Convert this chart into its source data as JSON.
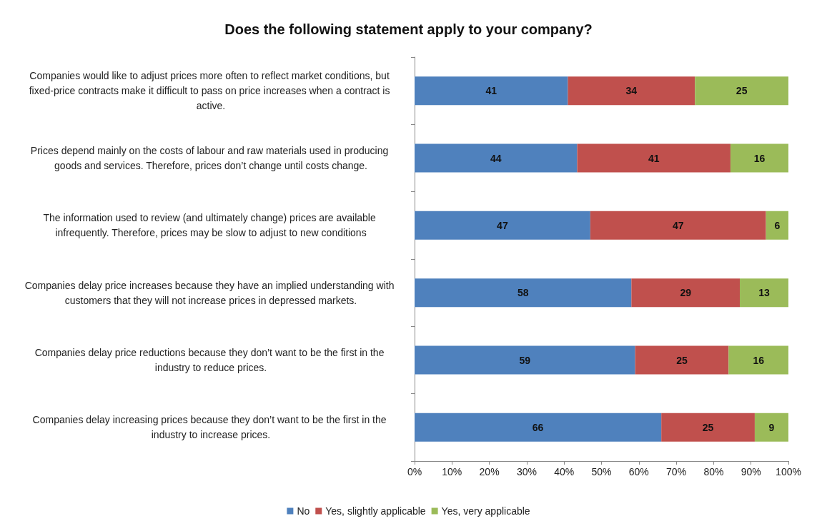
{
  "chart_data": {
    "type": "bar",
    "orientation": "horizontal",
    "stacked": true,
    "title": "Does the following statement apply to your company?",
    "categories": [
      "Companies would like to adjust prices more often to reflect market conditions, but fixed-price contracts make it difficult to pass on price increases when a contract is active.",
      "Prices depend mainly on the costs of labour and raw materials used in producing goods and services. Therefore, prices don’t change until costs change.",
      "The information used to review (and ultimately change) prices are available infrequently. Therefore, prices may be slow to adjust to new conditions",
      "Companies delay price increases because they have an implied understanding with customers that they will not increase prices in depressed markets.",
      "Companies delay price reductions because they don’t want to be the first in the industry to reduce prices.",
      "Companies delay increasing prices because they don’t want to be the first in the industry to increase prices."
    ],
    "series": [
      {
        "name": "No",
        "color": "#4f81bd",
        "values": [
          41,
          43.5,
          47,
          58,
          59,
          66
        ],
        "value_labels": [
          "41",
          "44",
          "47",
          "58",
          "59",
          "66"
        ]
      },
      {
        "name": "Yes, slightly applicable",
        "color": "#c0504d",
        "values": [
          34,
          41,
          47,
          29,
          25,
          25
        ],
        "value_labels": [
          "34",
          "41",
          "47",
          "29",
          "25",
          "25"
        ]
      },
      {
        "name": "Yes, very applicable",
        "color": "#9bbb59",
        "values": [
          25,
          15.5,
          6,
          13,
          16,
          9
        ],
        "value_labels": [
          "25",
          "16",
          "6",
          "13",
          "16",
          "9"
        ]
      }
    ],
    "xlim": [
      0,
      100
    ],
    "xticks": [
      {
        "value": 0,
        "label": "0%"
      },
      {
        "value": 10,
        "label": "10%"
      },
      {
        "value": 20,
        "label": "20%"
      },
      {
        "value": 30,
        "label": "30%"
      },
      {
        "value": 40,
        "label": "40%"
      },
      {
        "value": 50,
        "label": "50%"
      },
      {
        "value": 60,
        "label": "60%"
      },
      {
        "value": 70,
        "label": "70%"
      },
      {
        "value": 80,
        "label": "80%"
      },
      {
        "value": 90,
        "label": "90%"
      },
      {
        "value": 100,
        "label": "100%"
      }
    ],
    "legend": "bottom",
    "grid": false
  }
}
